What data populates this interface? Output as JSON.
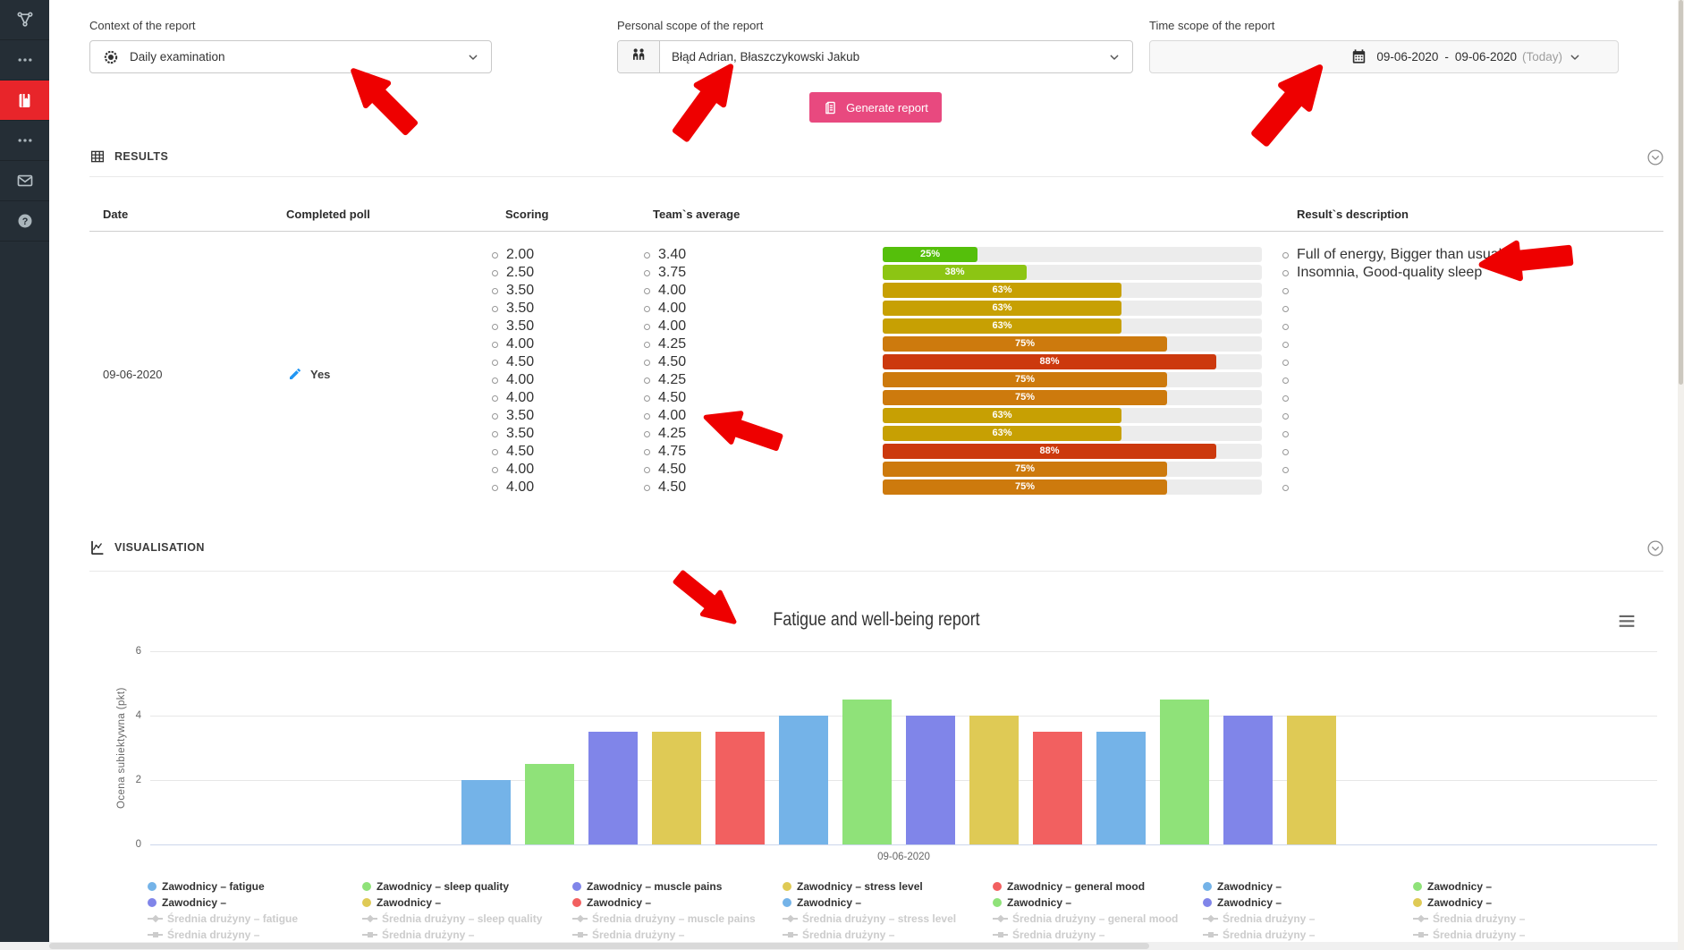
{
  "sidebar": {
    "background": "#252e36",
    "active_background": "#e8252a",
    "items": [
      {
        "icon": "hierarchy-icon",
        "active": false
      },
      {
        "icon": "menu-dots-icon",
        "active": false
      },
      {
        "icon": "book-icon",
        "active": true
      },
      {
        "icon": "menu-dots-icon",
        "active": false
      },
      {
        "icon": "mail-icon",
        "active": false
      },
      {
        "icon": "help-icon",
        "active": false
      }
    ]
  },
  "filters": {
    "context": {
      "label": "Context of the report",
      "value": "Daily examination",
      "icon": "target-icon",
      "chevron_icon": "chevron-down-icon"
    },
    "personal": {
      "label": "Personal scope of the report",
      "value": "Błąd Adrian, Błaszczykowski Jakub",
      "icon": "people-icon",
      "chevron_icon": "chevron-down-icon"
    },
    "time": {
      "label": "Time scope of the report",
      "icon": "calendar-icon",
      "from": "09-06-2020",
      "separator": "-",
      "to": "09-06-2020",
      "suffix": "(Today)",
      "chevron_icon": "chevron-down-icon"
    },
    "generate": {
      "label": "Generate report",
      "icon": "report-icon",
      "color": "#e8497f"
    }
  },
  "results": {
    "title": "RESULTS",
    "icon": "table-icon",
    "collapse_icon": "chevron-circle-icon",
    "columns": {
      "date": "Date",
      "completed": "Completed poll",
      "scoring": "Scoring",
      "team_avg": "Team`s average",
      "description": "Result`s description"
    },
    "date": "09-06-2020",
    "completed_icon": "pencil-icon",
    "completed_value": "Yes",
    "rows": [
      {
        "scoring": "2.00",
        "team_avg": "3.40",
        "percent": 25,
        "color": "#55bf0b",
        "description": "Full of energy, Bigger than usual"
      },
      {
        "scoring": "2.50",
        "team_avg": "3.75",
        "percent": 38,
        "color": "#8cc513",
        "description": "Insomnia, Good-quality sleep"
      },
      {
        "scoring": "3.50",
        "team_avg": "4.00",
        "percent": 63,
        "color": "#c7a003",
        "description": ""
      },
      {
        "scoring": "3.50",
        "team_avg": "4.00",
        "percent": 63,
        "color": "#c7a003",
        "description": ""
      },
      {
        "scoring": "3.50",
        "team_avg": "4.00",
        "percent": 63,
        "color": "#c7a003",
        "description": ""
      },
      {
        "scoring": "4.00",
        "team_avg": "4.25",
        "percent": 75,
        "color": "#cd7a0d",
        "description": ""
      },
      {
        "scoring": "4.50",
        "team_avg": "4.50",
        "percent": 88,
        "color": "#cc390d",
        "description": ""
      },
      {
        "scoring": "4.00",
        "team_avg": "4.25",
        "percent": 75,
        "color": "#cd7a0d",
        "description": ""
      },
      {
        "scoring": "4.00",
        "team_avg": "4.50",
        "percent": 75,
        "color": "#cd7a0d",
        "description": ""
      },
      {
        "scoring": "3.50",
        "team_avg": "4.00",
        "percent": 63,
        "color": "#c7a003",
        "description": ""
      },
      {
        "scoring": "3.50",
        "team_avg": "4.25",
        "percent": 63,
        "color": "#c7a003",
        "description": ""
      },
      {
        "scoring": "4.50",
        "team_avg": "4.75",
        "percent": 88,
        "color": "#cc390d",
        "description": ""
      },
      {
        "scoring": "4.00",
        "team_avg": "4.50",
        "percent": 75,
        "color": "#cd7a0d",
        "description": ""
      },
      {
        "scoring": "4.00",
        "team_avg": "4.50",
        "percent": 75,
        "color": "#cd7a0d",
        "description": ""
      }
    ]
  },
  "visualisation": {
    "title": "VISUALISATION",
    "icon": "chart-icon",
    "collapse_icon": "chevron-circle-icon",
    "menu_icon": "hamburger-icon"
  },
  "chart_data": {
    "type": "bar",
    "title": "Fatigue and well-being report",
    "ylabel": "Ocena subiektywna (pkt)",
    "category": "09-06-2020",
    "ylim": [
      0,
      6
    ],
    "yticks": [
      0,
      2,
      4,
      6
    ],
    "grid": true,
    "legend_position": "bottom",
    "palette": {
      "blue": "#74b3e8",
      "green": "#8fe279",
      "purple": "#8085e9",
      "yellow": "#dfca55",
      "red": "#f26060",
      "hidden": "#cccccc"
    },
    "series": [
      {
        "name": "Zawodnicy – fatigue",
        "color": "blue",
        "value": 2.0
      },
      {
        "name": "Zawodnicy – sleep quality",
        "color": "green",
        "value": 2.5
      },
      {
        "name": "Zawodnicy – muscle pains",
        "color": "purple",
        "value": 3.5
      },
      {
        "name": "Zawodnicy – stress level",
        "color": "yellow",
        "value": 3.5
      },
      {
        "name": "Zawodnicy – general mood",
        "color": "red",
        "value": 3.5
      },
      {
        "name": "Zawodnicy –",
        "color": "blue",
        "value": 4.0
      },
      {
        "name": "Zawodnicy –",
        "color": "green",
        "value": 4.5
      },
      {
        "name": "Zawodnicy –",
        "color": "purple",
        "value": 4.0
      },
      {
        "name": "Zawodnicy –",
        "color": "yellow",
        "value": 4.0
      },
      {
        "name": "Zawodnicy –",
        "color": "red",
        "value": 3.5
      },
      {
        "name": "Zawodnicy –",
        "color": "blue",
        "value": 3.5
      },
      {
        "name": "Zawodnicy –",
        "color": "green",
        "value": 4.5
      },
      {
        "name": "Zawodnicy –",
        "color": "purple",
        "value": 4.0
      },
      {
        "name": "Zawodnicy –",
        "color": "yellow",
        "value": 4.0
      }
    ],
    "legend_columns": [
      [
        {
          "label": "Zawodnicy – fatigue",
          "color": "blue"
        },
        {
          "label": "Zawodnicy –",
          "color": "purple"
        },
        {
          "label": "Średnia drużyny – fatigue",
          "color": "hidden"
        },
        {
          "label": "Średnia drużyny –",
          "color": "hidden"
        }
      ],
      [
        {
          "label": "Zawodnicy – sleep quality",
          "color": "green"
        },
        {
          "label": "Zawodnicy –",
          "color": "yellow"
        },
        {
          "label": "Średnia drużyny – sleep quality",
          "color": "hidden"
        },
        {
          "label": "Średnia drużyny –",
          "color": "hidden"
        }
      ],
      [
        {
          "label": "Zawodnicy – muscle pains",
          "color": "purple"
        },
        {
          "label": "Zawodnicy –",
          "color": "red"
        },
        {
          "label": "Średnia drużyny – muscle pains",
          "color": "hidden"
        },
        {
          "label": "Średnia drużyny –",
          "color": "hidden"
        }
      ],
      [
        {
          "label": "Zawodnicy – stress level",
          "color": "yellow"
        },
        {
          "label": "Zawodnicy –",
          "color": "blue"
        },
        {
          "label": "Średnia drużyny – stress level",
          "color": "hidden"
        },
        {
          "label": "Średnia drużyny –",
          "color": "hidden"
        }
      ],
      [
        {
          "label": "Zawodnicy – general mood",
          "color": "red"
        },
        {
          "label": "Zawodnicy –",
          "color": "green"
        },
        {
          "label": "Średnia drużyny – general mood",
          "color": "hidden"
        },
        {
          "label": "Średnia drużyny –",
          "color": "hidden"
        }
      ],
      [
        {
          "label": "Zawodnicy –",
          "color": "blue"
        },
        {
          "label": "Zawodnicy –",
          "color": "purple"
        },
        {
          "label": "Średnia drużyny –",
          "color": "hidden"
        },
        {
          "label": "Średnia drużyny –",
          "color": "hidden"
        }
      ],
      [
        {
          "label": "Zawodnicy –",
          "color": "green"
        },
        {
          "label": "Zawodnicy –",
          "color": "yellow"
        },
        {
          "label": "Średnia drużyny –",
          "color": "hidden"
        },
        {
          "label": "Średnia drużyny –",
          "color": "hidden"
        }
      ]
    ]
  },
  "annotations": {
    "color": "#ee0000",
    "arrows": [
      {
        "tip": [
          394,
          78
        ],
        "angle": -135,
        "length": 100
      },
      {
        "tip": [
          818,
          73
        ],
        "angle": -54,
        "length": 105
      },
      {
        "tip": [
          1477,
          74
        ],
        "angle": -50,
        "length": 115
      },
      {
        "tip": [
          1655,
          296
        ],
        "angle": 174,
        "length": 110
      },
      {
        "tip": [
          788,
          466
        ],
        "angle": -161,
        "length": 95
      },
      {
        "tip": [
          822,
          696
        ],
        "angle": 39,
        "length": 88
      }
    ]
  }
}
